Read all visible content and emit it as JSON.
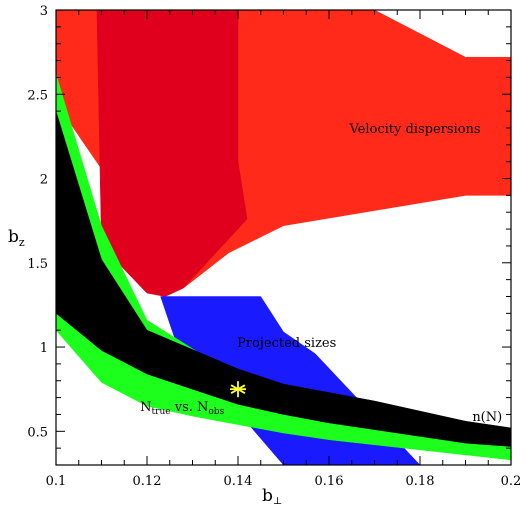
{
  "chart_data": {
    "type": "area",
    "xlabel": "b",
    "xlabel_sub": "⊥",
    "ylabel": "b",
    "ylabel_sub": "z",
    "xlim": [
      0.1,
      0.2
    ],
    "ylim": [
      0.3,
      3.0
    ],
    "xticks": [
      0.1,
      0.12,
      0.14,
      0.16,
      0.18,
      0.2
    ],
    "yticks": [
      0.5,
      1,
      1.5,
      2,
      2.5,
      3
    ],
    "xtick_labels": [
      "0.1",
      "0.12",
      "0.14",
      "0.16",
      "0.18",
      "0.2"
    ],
    "ytick_labels": [
      "0.5",
      "1",
      "1.5",
      "2",
      "2.5",
      "3"
    ],
    "colors": {
      "velocity": "#ff2a1a",
      "velocity_dark": "#e0001e",
      "projected": "#1a1aff",
      "ntrue": "#1cff1c",
      "nN": "#000000",
      "marker": "#ffff33"
    },
    "regions": [
      {
        "key": "velocity_outer",
        "color_key": "velocity",
        "polygon": [
          [
            0.1,
            3.0
          ],
          [
            0.17,
            3.0
          ],
          [
            0.175,
            2.93
          ],
          [
            0.19,
            2.72
          ],
          [
            0.2,
            2.72
          ],
          [
            0.2,
            1.9
          ],
          [
            0.19,
            1.9
          ],
          [
            0.15,
            1.72
          ],
          [
            0.138,
            1.56
          ],
          [
            0.128,
            1.35
          ],
          [
            0.1,
            2.45
          ]
        ]
      },
      {
        "key": "velocity_inner",
        "color_key": "velocity_dark",
        "polygon": [
          [
            0.109,
            3.0
          ],
          [
            0.14,
            3.0
          ],
          [
            0.14,
            2.1
          ],
          [
            0.142,
            1.76
          ],
          [
            0.128,
            1.35
          ],
          [
            0.124,
            1.3
          ],
          [
            0.12,
            1.32
          ],
          [
            0.11,
            1.6
          ]
        ]
      },
      {
        "key": "projected",
        "color_key": "projected",
        "polygon": [
          [
            0.123,
            1.3
          ],
          [
            0.145,
            1.3
          ],
          [
            0.15,
            1.09
          ],
          [
            0.157,
            0.96
          ],
          [
            0.18,
            0.3
          ],
          [
            0.15,
            0.3
          ],
          [
            0.136,
            0.74
          ],
          [
            0.128,
            0.9
          ]
        ]
      },
      {
        "key": "ntrue",
        "color_key": "ntrue",
        "polygon": [
          [
            0.1,
            2.62
          ],
          [
            0.11,
            1.72
          ],
          [
            0.12,
            1.16
          ],
          [
            0.14,
            0.82
          ],
          [
            0.15,
            0.7
          ],
          [
            0.17,
            0.57
          ],
          [
            0.19,
            0.5
          ],
          [
            0.2,
            0.44
          ],
          [
            0.2,
            0.33
          ],
          [
            0.19,
            0.36
          ],
          [
            0.17,
            0.42
          ],
          [
            0.16,
            0.45
          ],
          [
            0.15,
            0.49
          ],
          [
            0.13,
            0.59
          ],
          [
            0.12,
            0.65
          ],
          [
            0.11,
            0.79
          ],
          [
            0.1,
            1.1
          ]
        ]
      },
      {
        "key": "nN",
        "color_key": "nN",
        "polygon": [
          [
            0.1,
            2.4
          ],
          [
            0.11,
            1.52
          ],
          [
            0.12,
            1.1
          ],
          [
            0.14,
            0.87
          ],
          [
            0.15,
            0.78
          ],
          [
            0.17,
            0.68
          ],
          [
            0.19,
            0.56
          ],
          [
            0.2,
            0.52
          ],
          [
            0.2,
            0.41
          ],
          [
            0.19,
            0.43
          ],
          [
            0.17,
            0.51
          ],
          [
            0.16,
            0.55
          ],
          [
            0.15,
            0.6
          ],
          [
            0.14,
            0.66
          ],
          [
            0.13,
            0.75
          ],
          [
            0.12,
            0.84
          ],
          [
            0.11,
            0.98
          ],
          [
            0.1,
            1.2
          ]
        ]
      }
    ],
    "marker": {
      "x": 0.14,
      "y": 0.75
    },
    "annotations": {
      "velocity": {
        "text": "Velocity dispersions",
        "x": 0.1645,
        "y": 2.27
      },
      "projected": {
        "text": "Projected sizes",
        "x": 0.1398,
        "y": 1.0
      },
      "ntrue": {
        "text": "N",
        "sub": "true",
        "mid": " vs. N",
        "sub2": "obs",
        "x": 0.1185,
        "y": 0.62
      },
      "nN": {
        "text": "n(N)",
        "x": 0.1915,
        "y": 0.56
      }
    }
  }
}
